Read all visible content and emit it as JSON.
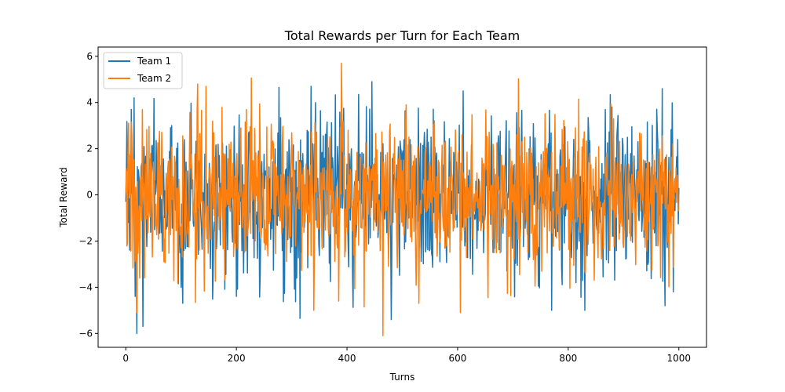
{
  "chart_data": {
    "type": "line",
    "title": "Total Rewards per Turn for Each Team",
    "xlabel": "Turns",
    "ylabel": "Total Reward",
    "xlim": [
      -50,
      1050
    ],
    "ylim": [
      -6.6,
      6.4
    ],
    "xticks": [
      0,
      200,
      400,
      600,
      800,
      1000
    ],
    "yticks": [
      -6,
      -4,
      -2,
      0,
      2,
      4,
      6
    ],
    "grid": false,
    "legend_position": "upper-left",
    "n_points": 1001,
    "series": [
      {
        "name": "Team 1",
        "color": "#1f77b4",
        "summary": {
          "min": -6.0,
          "max": 4.9,
          "approx_std": 1.7
        },
        "anchor_points": [
          {
            "x": 0,
            "y": -0.3
          },
          {
            "x": 5,
            "y": -1.2
          },
          {
            "x": 10,
            "y": 3.7
          },
          {
            "x": 15,
            "y": 4.2
          },
          {
            "x": 17,
            "y": -4.4
          },
          {
            "x": 20,
            "y": -6.0
          },
          {
            "x": 31,
            "y": -5.7
          },
          {
            "x": 100,
            "y": -4.0
          },
          {
            "x": 200,
            "y": -4.4
          },
          {
            "x": 335,
            "y": 4.7
          },
          {
            "x": 445,
            "y": 4.9
          },
          {
            "x": 480,
            "y": -5.4
          },
          {
            "x": 610,
            "y": 4.5
          },
          {
            "x": 770,
            "y": -5.0
          },
          {
            "x": 830,
            "y": -5.0
          },
          {
            "x": 970,
            "y": 4.6
          },
          {
            "x": 975,
            "y": -4.8
          },
          {
            "x": 990,
            "y": -4.2
          },
          {
            "x": 1000,
            "y": 0.3
          }
        ]
      },
      {
        "name": "Team 2",
        "color": "#ff7f0e",
        "summary": {
          "min": -6.1,
          "max": 5.7,
          "approx_std": 1.6
        },
        "anchor_points": [
          {
            "x": 0,
            "y": 0.1
          },
          {
            "x": 5,
            "y": 3.1
          },
          {
            "x": 20,
            "y": -5.1
          },
          {
            "x": 25,
            "y": -3.6
          },
          {
            "x": 130,
            "y": 4.8
          },
          {
            "x": 145,
            "y": 4.7
          },
          {
            "x": 340,
            "y": -5.0
          },
          {
            "x": 385,
            "y": -4.6
          },
          {
            "x": 390,
            "y": 5.7
          },
          {
            "x": 465,
            "y": -6.1
          },
          {
            "x": 530,
            "y": -4.7
          },
          {
            "x": 605,
            "y": -5.1
          },
          {
            "x": 1000,
            "y": -0.6
          }
        ]
      }
    ]
  }
}
